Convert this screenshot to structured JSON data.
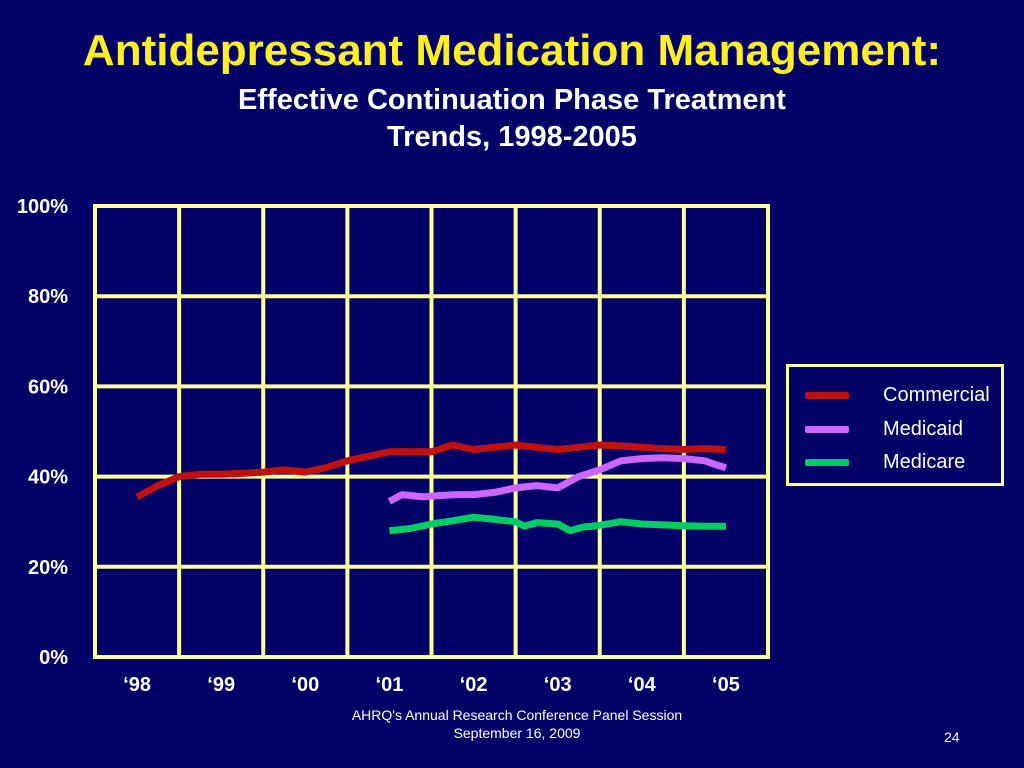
{
  "slide": {
    "title": "Antidepressant Medication Management:",
    "subtitle_line1": "Effective Continuation Phase Treatment",
    "subtitle_line2": "Trends, 1998-2005",
    "footer_line1": "AHRQ's Annual Research Conference Panel Session",
    "footer_line2": "September 16, 2009",
    "page_number": "24"
  },
  "colors": {
    "background": "#000066",
    "title": "#ffee22",
    "grid": "#ffff99",
    "text": "#ffffff"
  },
  "chart_data": {
    "type": "line",
    "title": "",
    "xlabel": "",
    "ylabel": "",
    "categories": [
      "‘98",
      "‘99",
      "‘00",
      "‘01",
      "‘02",
      "‘03",
      "‘04",
      "‘05"
    ],
    "xlim": [
      1998,
      2005
    ],
    "ylim": [
      0,
      100
    ],
    "y_ticks": [
      0,
      20,
      40,
      60,
      80,
      100
    ],
    "y_tick_labels": [
      "0%",
      "20%",
      "40%",
      "60%",
      "80%",
      "100%"
    ],
    "grid": true,
    "legend_position": "right",
    "series": [
      {
        "name": "Commercial",
        "color": "#c01010",
        "x": [
          1998.0,
          1998.25,
          1998.5,
          1998.75,
          1999.0,
          1999.25,
          1999.5,
          1999.75,
          2000.0,
          2000.25,
          2000.5,
          2000.75,
          2001.0,
          2001.25,
          2001.5,
          2001.75,
          2002.0,
          2002.25,
          2002.5,
          2002.75,
          2003.0,
          2003.25,
          2003.5,
          2003.75,
          2004.0,
          2004.25,
          2004.5,
          2004.75,
          2005.0
        ],
        "values": [
          35.5,
          38,
          40,
          40.5,
          40.5,
          40.7,
          41,
          41.5,
          41,
          42,
          43.5,
          44.5,
          45.5,
          45.5,
          45.5,
          47,
          46,
          46.5,
          47,
          46.5,
          46,
          46.5,
          47,
          46.8,
          46.5,
          46.2,
          46,
          46.2,
          46
        ]
      },
      {
        "name": "Medicaid",
        "color": "#cc66ff",
        "x": [
          2001.0,
          2001.15,
          2001.4,
          2001.6,
          2001.8,
          2002.0,
          2002.25,
          2002.5,
          2002.75,
          2003.0,
          2003.25,
          2003.5,
          2003.75,
          2004.0,
          2004.25,
          2004.5,
          2004.75,
          2004.9,
          2005.0
        ],
        "values": [
          34.5,
          36,
          35.5,
          35.8,
          36,
          36,
          36.5,
          37.5,
          38,
          37.5,
          40,
          41.5,
          43.5,
          44,
          44.2,
          44,
          43.5,
          42.5,
          42
        ]
      },
      {
        "name": "Medicare",
        "color": "#00cc66",
        "x": [
          2001.0,
          2001.25,
          2001.5,
          2001.75,
          2002.0,
          2002.25,
          2002.5,
          2002.6,
          2002.75,
          2003.0,
          2003.15,
          2003.3,
          2003.5,
          2003.75,
          2004.0,
          2004.25,
          2004.5,
          2004.75,
          2005.0
        ],
        "values": [
          28,
          28.5,
          29.5,
          30.2,
          31,
          30.5,
          30,
          29,
          29.8,
          29.5,
          28,
          28.8,
          29.2,
          30,
          29.5,
          29.3,
          29.1,
          29,
          29
        ]
      }
    ]
  }
}
